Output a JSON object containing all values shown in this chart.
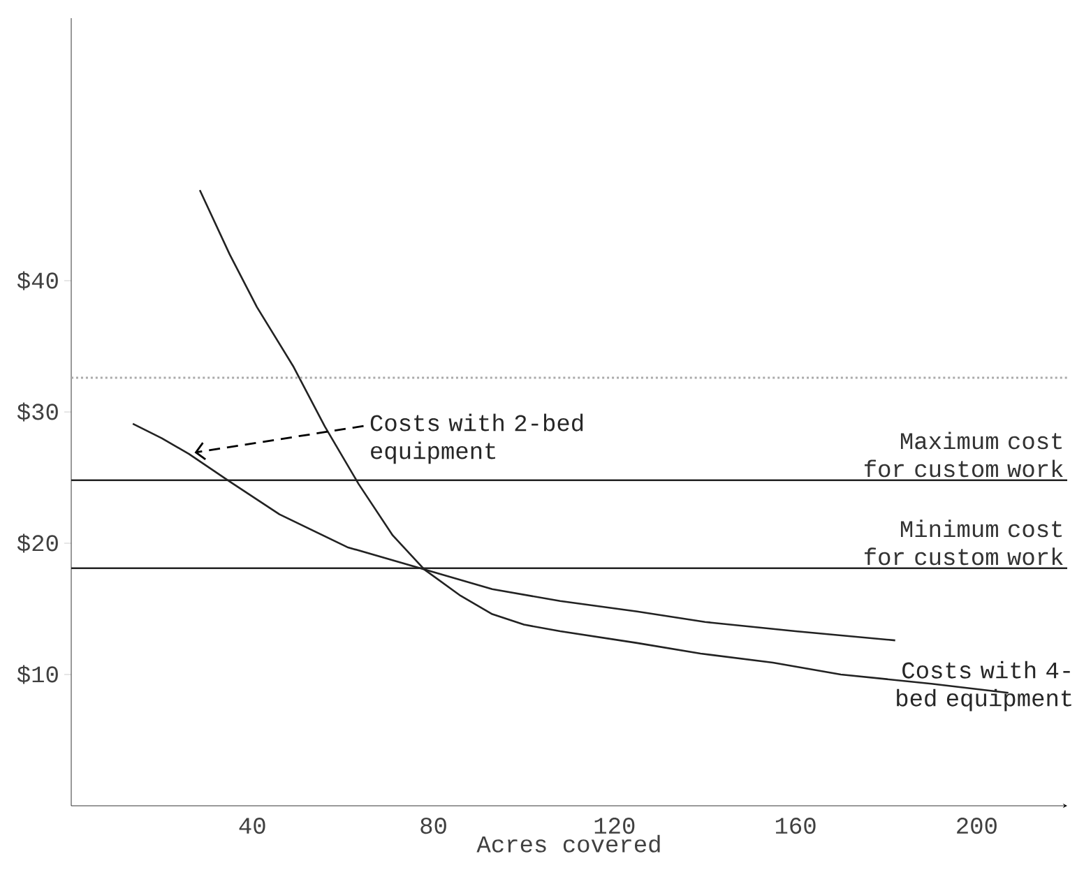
{
  "chart_data": {
    "type": "line",
    "xlabel": "Acres covered",
    "xlim": [
      0,
      220
    ],
    "ylim": [
      0,
      60
    ],
    "xticks": [
      40,
      80,
      120,
      160,
      200
    ],
    "yticks": [
      {
        "value": 10,
        "label": "$10"
      },
      {
        "value": 20,
        "label": "$20"
      },
      {
        "value": 30,
        "label": "$30"
      },
      {
        "value": 40,
        "label": "$40"
      }
    ],
    "series": [
      {
        "color": "#222222",
        "x": [
          13.6,
          20,
          26,
          35,
          46,
          61,
          78,
          93,
          108,
          125,
          140,
          160,
          182
        ],
        "values": [
          29.1,
          28.0,
          26.8,
          24.7,
          22.2,
          19.7,
          18.0,
          16.5,
          15.6,
          14.8,
          14.0,
          13.3,
          12.6
        ]
      },
      {
        "color": "#222222",
        "x": [
          28.4,
          35,
          41,
          49,
          56,
          63.5,
          71,
          78,
          86,
          93,
          100,
          108,
          125,
          139,
          155,
          170,
          190,
          207
        ],
        "values": [
          46.9,
          42.0,
          38.0,
          33.5,
          28.9,
          24.5,
          20.6,
          18.0,
          16.0,
          14.6,
          13.8,
          13.3,
          12.4,
          11.6,
          10.9,
          10.0,
          9.3,
          8.6
        ]
      }
    ],
    "ref_lines": [
      {
        "axis": "y",
        "value": 32.6,
        "color": "#aaaaaa",
        "line_style": "dotted"
      },
      {
        "axis": "y",
        "value": 24.8,
        "label": "Maximum cost for custom work",
        "color": "#222222"
      },
      {
        "axis": "y",
        "value": 18.1,
        "label": "Minimum cost for custom work",
        "color": "#222222"
      }
    ],
    "annotations": [
      {
        "text": "Costs with 2-bed equipment",
        "x": 26,
        "y": 26.8
      },
      {
        "text": "Costs with 4-bed equipment",
        "x": 207,
        "y": 8.6
      }
    ]
  }
}
